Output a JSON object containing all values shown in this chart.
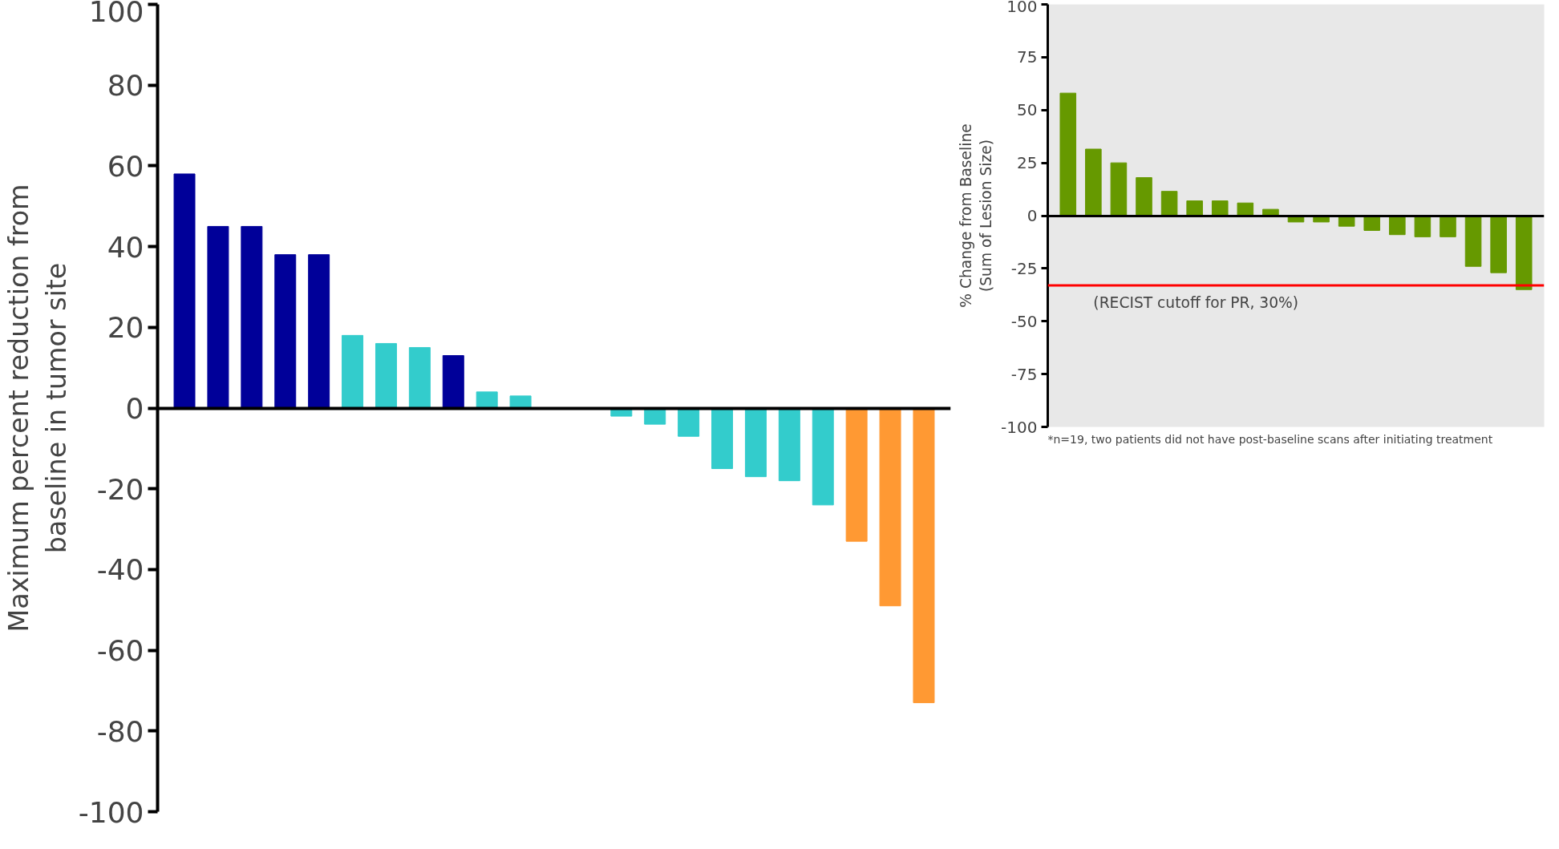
{
  "chart_data": [
    {
      "type": "bar",
      "ylabel": "Maximum percent reduction from\nbaseline in tumor site",
      "categories": [
        null,
        null,
        null,
        null,
        null,
        null,
        null,
        null,
        null,
        null,
        null,
        null,
        null,
        null,
        null,
        null,
        null,
        null,
        null,
        null,
        null,
        null,
        null
      ],
      "values": [
        58,
        45,
        45,
        38,
        38,
        18,
        16,
        15,
        13,
        4,
        3,
        0,
        0,
        -2,
        -4,
        -7,
        -15,
        -17,
        -18,
        -24,
        -33,
        -49,
        -73
      ],
      "colors": [
        "#000099",
        "#000099",
        "#000099",
        "#000099",
        "#000099",
        "#33cccc",
        "#33cccc",
        "#33cccc",
        "#000099",
        "#33cccc",
        "#33cccc",
        "#33cccc",
        "#33cccc",
        "#33cccc",
        "#33cccc",
        "#33cccc",
        "#33cccc",
        "#33cccc",
        "#33cccc",
        "#33cccc",
        "#ff9933",
        "#ff9933",
        "#ff9933"
      ],
      "ylim": [
        -100,
        100
      ],
      "yticks": [
        -100,
        -80,
        -60,
        -40,
        -20,
        0,
        20,
        40,
        60,
        80,
        100
      ],
      "tick_labels": "y"
    },
    {
      "type": "bar",
      "ylabel": "% Change from Baseline\n(Sum of Lesion Size)",
      "categories": [
        null,
        null,
        null,
        null,
        null,
        null,
        null,
        null,
        null,
        null,
        null,
        null,
        null,
        null,
        null,
        null,
        null,
        null,
        null
      ],
      "values": [
        58,
        31.5,
        25,
        18,
        11.5,
        7,
        7,
        6,
        3,
        -3,
        -3,
        -5,
        -7,
        -9,
        -10,
        -10,
        -24,
        -27,
        -35
      ],
      "colors": [
        "#669900",
        "#669900",
        "#669900",
        "#669900",
        "#669900",
        "#669900",
        "#669900",
        "#669900",
        "#669900",
        "#669900",
        "#669900",
        "#669900",
        "#669900",
        "#669900",
        "#669900",
        "#669900",
        "#669900",
        "#669900",
        "#669900"
      ],
      "ylim": [
        -100,
        100
      ],
      "yticks": [
        -100,
        -75,
        -50,
        -25,
        0,
        25,
        50,
        75,
        100
      ],
      "tick_labels": "y",
      "ref_lines": [
        {
          "axis": "y",
          "value": -33,
          "label": "(RECIST cutoff for PR, 30%)",
          "color": "#ff0000"
        }
      ],
      "annotations": [
        "*n=19, two patients did not have post-baseline scans after initiating treatment"
      ]
    }
  ]
}
